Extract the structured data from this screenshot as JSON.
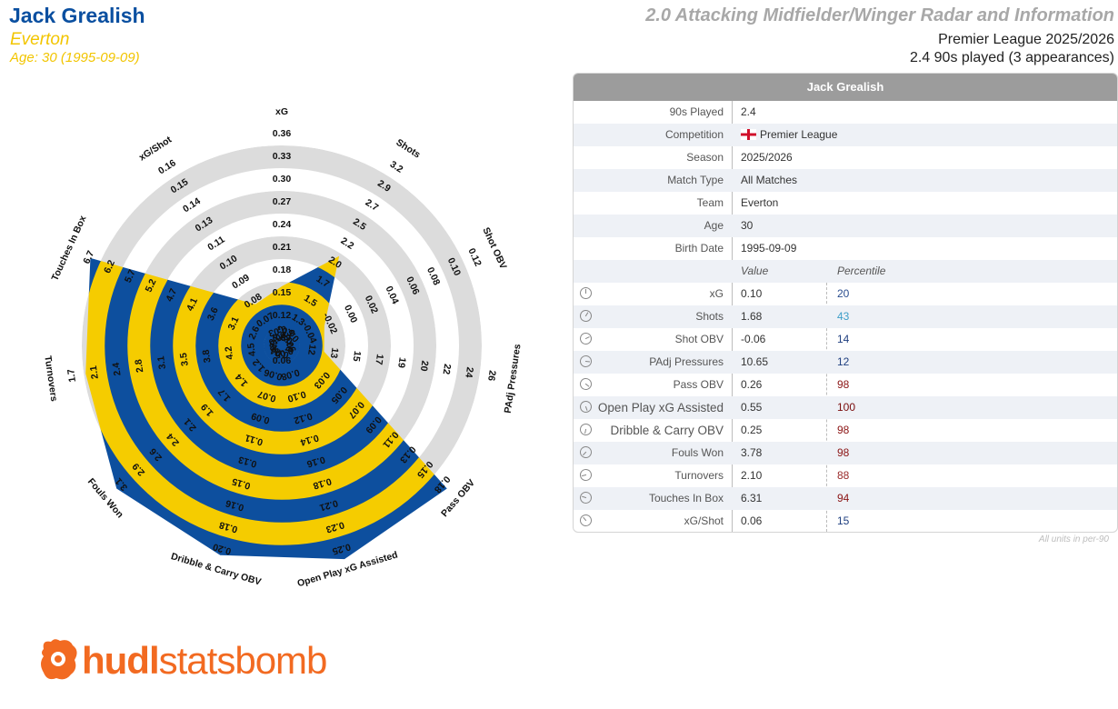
{
  "header": {
    "player_name": "Jack Grealish",
    "team": "Everton",
    "age_line": "Age: 30 (1995-09-09)",
    "report_title": "2.0 Attacking Midfielder/Winger Radar and Information",
    "league_season": "Premier League 2025/2026",
    "played_line": "2.4 90s played (3 appearances)"
  },
  "chart_data": {
    "type": "radar",
    "colors": {
      "fill_yellow": "#f5cc00",
      "fill_blue": "#0d4f9e",
      "ring_grey": "#dcdcdc"
    },
    "axes": [
      {
        "label": "xG",
        "value": 0.1,
        "percentile": 20,
        "ticks": [
          "0.06",
          "0.09",
          "0.12",
          "0.15",
          "0.18",
          "0.21",
          "0.24",
          "0.27",
          "0.30",
          "0.33",
          "0.36"
        ]
      },
      {
        "label": "Shots",
        "value": 1.68,
        "percentile": 43,
        "ticks": [
          "1.0",
          "1.3",
          "1.5",
          "1.7",
          "2.0",
          "2.2",
          "2.5",
          "2.7",
          "2.9",
          "3.2"
        ]
      },
      {
        "label": "Shot OBV",
        "value": -0.06,
        "percentile": 14,
        "ticks": [
          "-0.06",
          "-0.04",
          "-0.02",
          "0.00",
          "0.02",
          "0.04",
          "0.06",
          "0.08",
          "0.10",
          "0.12"
        ]
      },
      {
        "label": "PAdj Pressures",
        "value": 10.65,
        "percentile": 12,
        "ticks": [
          "10",
          "12",
          "13",
          "15",
          "17",
          "19",
          "20",
          "22",
          "24",
          "26"
        ]
      },
      {
        "label": "Pass OBV",
        "value": 0.26,
        "percentile": 98,
        "ticks": [
          "0.03",
          "0.05",
          "0.07",
          "0.09",
          "0.11",
          "0.13",
          "0.15",
          "0.18"
        ]
      },
      {
        "label": "Open Play xG Assisted",
        "value": 0.55,
        "percentile": 100,
        "ticks": [
          "0.03",
          "0.05",
          "0.08",
          "0.10",
          "0.12",
          "0.14",
          "0.16",
          "0.18",
          "0.21",
          "0.23",
          "0.25"
        ]
      },
      {
        "label": "Dribble & Carry OBV",
        "value": 0.25,
        "percentile": 98,
        "ticks": [
          "0.03",
          "0.04",
          "0.06",
          "0.07",
          "0.09",
          "0.11",
          "0.13",
          "0.15",
          "0.16",
          "0.18",
          "0.20"
        ]
      },
      {
        "label": "Fouls Won",
        "value": 3.78,
        "percentile": 98,
        "ticks": [
          "0.6",
          "0.9",
          "1.2",
          "1.4",
          "1.7",
          "1.9",
          "2.1",
          "2.4",
          "2.6",
          "2.9",
          "3.1"
        ]
      },
      {
        "label": "Turnovers",
        "value": 2.1,
        "percentile": 88,
        "ticks": [
          "4.9",
          "4.5",
          "4.2",
          "3.8",
          "3.5",
          "3.1",
          "2.8",
          "2.4",
          "2.1",
          "1.7"
        ]
      },
      {
        "label": "Touches In Box",
        "value": 6.31,
        "percentile": 94,
        "ticks": [
          "2.1",
          "2.6",
          "3.1",
          "3.6",
          "4.1",
          "4.7",
          "5.2",
          "5.7",
          "6.2",
          "6.7"
        ]
      },
      {
        "label": "xG/Shot",
        "value": 0.06,
        "percentile": 15,
        "ticks": [
          "0.06",
          "0.07",
          "0.08",
          "0.09",
          "0.10",
          "0.11",
          "0.13",
          "0.14",
          "0.15",
          "0.16"
        ]
      }
    ]
  },
  "table": {
    "header": "Jack Grealish",
    "info_rows": [
      {
        "label": "90s Played",
        "value": "2.4"
      },
      {
        "label": "Competition",
        "value": "Premier League",
        "icon": "england-flag-icon"
      },
      {
        "label": "Season",
        "value": "2025/2026"
      },
      {
        "label": "Match Type",
        "value": "All Matches"
      },
      {
        "label": "Team",
        "value": "Everton"
      },
      {
        "label": "Age",
        "value": "30"
      },
      {
        "label": "Birth Date",
        "value": "1995-09-09"
      }
    ],
    "col_value": "Value",
    "col_percentile": "Percentile",
    "stat_rows": [
      {
        "label": "xG",
        "value": "0.10",
        "percentile": "20",
        "pct_color": "#2a4d8f"
      },
      {
        "label": "Shots",
        "value": "1.68",
        "percentile": "43",
        "pct_color": "#3d9ec8"
      },
      {
        "label": "Shot OBV",
        "value": "-0.06",
        "percentile": "14",
        "pct_color": "#1f3f80"
      },
      {
        "label": "PAdj Pressures",
        "value": "10.65",
        "percentile": "12",
        "pct_color": "#1f3f80"
      },
      {
        "label": "Pass OBV",
        "value": "0.26",
        "percentile": "98",
        "pct_color": "#8b1414"
      },
      {
        "label": "Open Play xG Assisted",
        "value": "0.55",
        "percentile": "100",
        "pct_color": "#7a0c0c"
      },
      {
        "label": "Dribble & Carry OBV",
        "value": "0.25",
        "percentile": "98",
        "pct_color": "#8b1414"
      },
      {
        "label": "Fouls Won",
        "value": "3.78",
        "percentile": "98",
        "pct_color": "#8b1414"
      },
      {
        "label": "Turnovers",
        "value": "2.10",
        "percentile": "88",
        "pct_color": "#9a2a2a"
      },
      {
        "label": "Touches In Box",
        "value": "6.31",
        "percentile": "94",
        "pct_color": "#8b1414"
      },
      {
        "label": "xG/Shot",
        "value": "0.06",
        "percentile": "15",
        "pct_color": "#1f3f80"
      }
    ],
    "units_note": "All units in per-90"
  },
  "logo": {
    "bold": "hudl",
    "thin": "statsbomb"
  }
}
